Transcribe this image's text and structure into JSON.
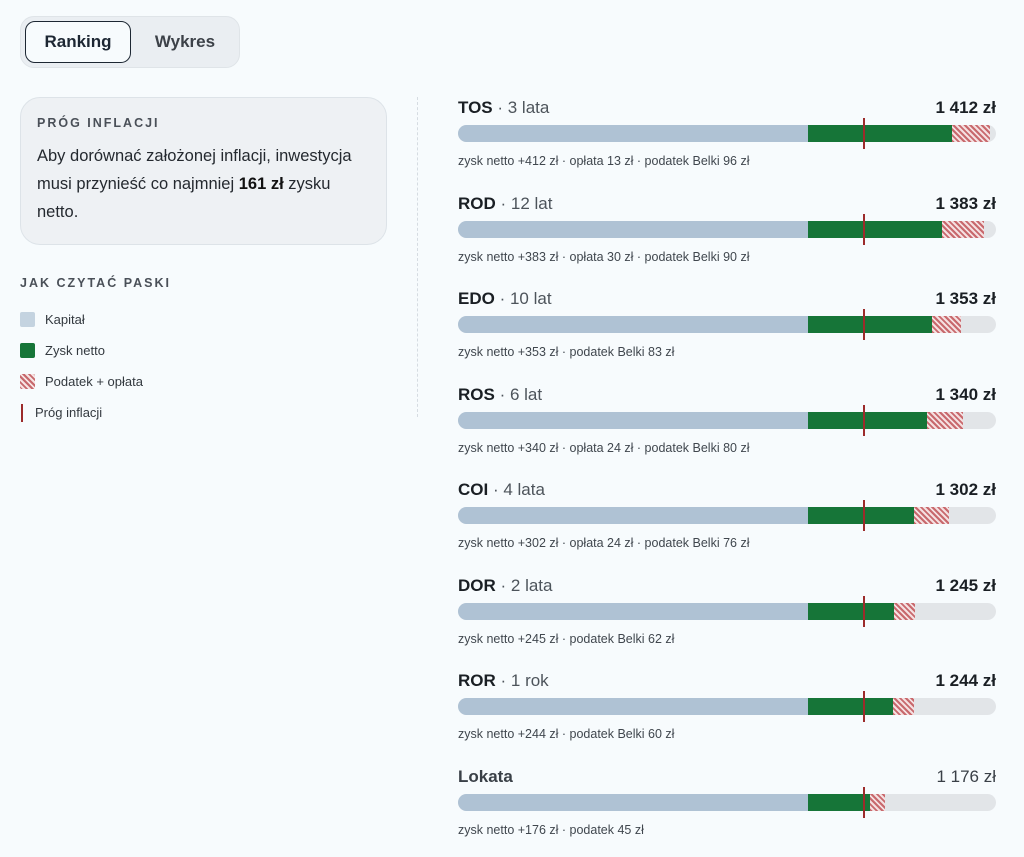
{
  "tabs": [
    {
      "label": "Ranking",
      "active": true
    },
    {
      "label": "Wykres",
      "active": false
    }
  ],
  "inflation_card": {
    "title": "PRÓG INFLACJI",
    "text_before": "Aby dorównać założonej inflacji, inwestycja musi przynieść co najmniej ",
    "amount": "161 zł",
    "text_after": " zysku netto."
  },
  "legend": {
    "title": "JAK CZYTAĆ PASKI",
    "items": [
      {
        "label": "Kapitał"
      },
      {
        "label": "Zysk netto"
      },
      {
        "label": "Podatek + opłata"
      },
      {
        "label": "Próg inflacji"
      }
    ]
  },
  "colors": {
    "capital": "#afc2d4",
    "net": "#167538",
    "tax": "#c8696d",
    "threshold": "#9c2b2b"
  },
  "scale": {
    "capital": 1000,
    "inflation_threshold": 161,
    "full_bar_value": 1537
  },
  "rows": [
    {
      "code": "TOS",
      "period": "3 lata",
      "total": "1 412 zł",
      "net": 412,
      "fee": 13,
      "tax": 96,
      "detail": "zysk netto +412 zł · opłata 13 zł · podatek Belki 96 zł"
    },
    {
      "code": "ROD",
      "period": "12 lat",
      "total": "1 383 zł",
      "net": 383,
      "fee": 30,
      "tax": 90,
      "detail": "zysk netto +383 zł · opłata 30 zł · podatek Belki 90 zł"
    },
    {
      "code": "EDO",
      "period": "10 lat",
      "total": "1 353 zł",
      "net": 353,
      "fee": 0,
      "tax": 83,
      "detail": "zysk netto +353 zł · podatek Belki 83 zł"
    },
    {
      "code": "ROS",
      "period": "6 lat",
      "total": "1 340 zł",
      "net": 340,
      "fee": 24,
      "tax": 80,
      "detail": "zysk netto +340 zł · opłata 24 zł · podatek Belki 80 zł"
    },
    {
      "code": "COI",
      "period": "4 lata",
      "total": "1 302 zł",
      "net": 302,
      "fee": 24,
      "tax": 76,
      "detail": "zysk netto +302 zł · opłata 24 zł · podatek Belki 76 zł"
    },
    {
      "code": "DOR",
      "period": "2 lata",
      "total": "1 245 zł",
      "net": 245,
      "fee": 0,
      "tax": 62,
      "detail": "zysk netto +245 zł · podatek Belki 62 zł"
    },
    {
      "code": "ROR",
      "period": "1 rok",
      "total": "1 244 zł",
      "net": 244,
      "fee": 0,
      "tax": 60,
      "detail": "zysk netto +244 zł · podatek Belki 60 zł"
    },
    {
      "code": "Lokata",
      "period": "",
      "total": "1 176 zł",
      "net": 176,
      "fee": 0,
      "tax": 45,
      "detail": "zysk netto +176 zł · podatek 45 zł",
      "muted": true
    }
  ]
}
